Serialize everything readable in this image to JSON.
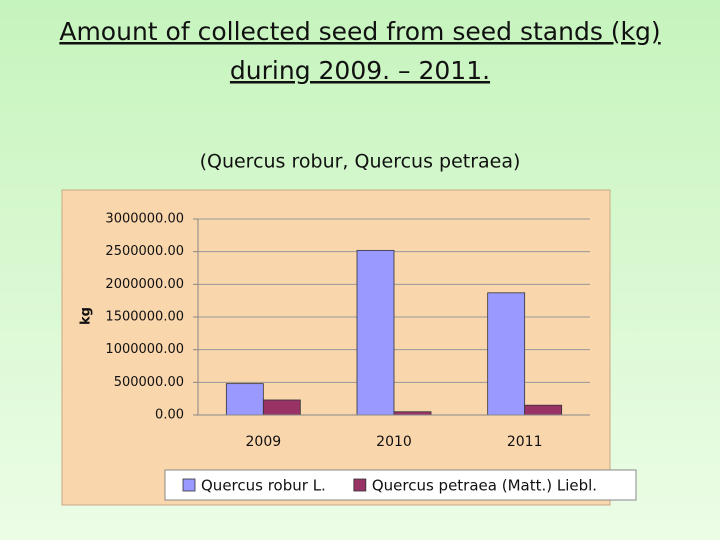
{
  "chart_data": {
    "type": "bar",
    "title_lines": [
      "Amount of collected seed from seed stands (kg)",
      "during 2009. – 2011."
    ],
    "subtitle": "(Quercus robur, Quercus petraea)",
    "y_label": "kg",
    "categories": [
      "2009",
      "2010",
      "2011"
    ],
    "series": [
      {
        "name": "Quercus robur L.",
        "color": "#9999ff",
        "values": [
          480000,
          2520000,
          1870000
        ]
      },
      {
        "name": "Quercus petraea (Matt.) Liebl.",
        "color": "#993366",
        "values": [
          230000,
          50000,
          150000
        ]
      }
    ],
    "ylim": [
      0,
      3000000
    ],
    "yticks": [
      {
        "value": 0,
        "label": "0.00"
      },
      {
        "value": 500000,
        "label": "500000.00"
      },
      {
        "value": 1000000,
        "label": "1000000.00"
      },
      {
        "value": 1500000,
        "label": "1500000.00"
      },
      {
        "value": 2000000,
        "label": "2000000.00"
      },
      {
        "value": 2500000,
        "label": "2500000.00"
      },
      {
        "value": 3000000,
        "label": "3000000.00"
      }
    ],
    "grid": true,
    "legend": "bottom"
  }
}
